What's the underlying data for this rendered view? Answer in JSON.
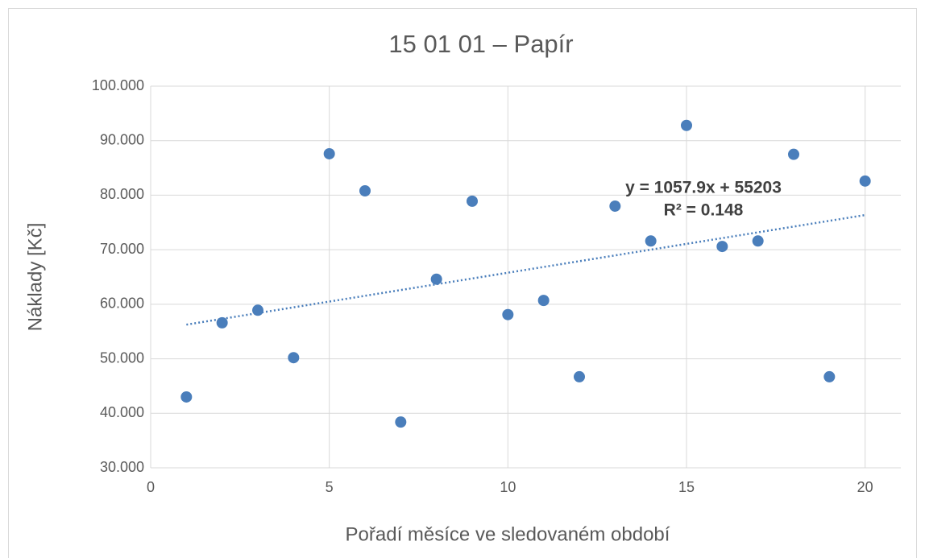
{
  "chart_data": {
    "type": "scatter",
    "title": "15 01 01 – Papír",
    "x_label": "Pořadí měsíce ve sledovaném období",
    "y_label": "Náklady [Kč]",
    "x": [
      1,
      2,
      3,
      4,
      5,
      6,
      7,
      8,
      9,
      10,
      11,
      12,
      13,
      14,
      15,
      16,
      17,
      18,
      19,
      20
    ],
    "series": [
      {
        "name": "Náklady",
        "color": "#4a7ebb",
        "values": [
          43000,
          56600,
          58900,
          50200,
          87600,
          80800,
          38400,
          64600,
          78900,
          58100,
          60700,
          46700,
          78000,
          71600,
          92800,
          70600,
          71600,
          87500,
          46700,
          82600
        ]
      }
    ],
    "xlim": [
      0,
      21
    ],
    "xticks": [
      0,
      5,
      10,
      15,
      20
    ],
    "ylim": [
      30000,
      100000
    ],
    "yticks": [
      {
        "value": 30000,
        "label": "30.000"
      },
      {
        "value": 40000,
        "label": "40.000"
      },
      {
        "value": 50000,
        "label": "50.000"
      },
      {
        "value": 60000,
        "label": "60.000"
      },
      {
        "value": 70000,
        "label": "70.000"
      },
      {
        "value": 80000,
        "label": "80.000"
      },
      {
        "value": 90000,
        "label": "90.000"
      },
      {
        "value": 100000,
        "label": "100.000"
      }
    ],
    "grid": true,
    "trendline": {
      "slope": 1057.9,
      "intercept": 55203,
      "equation": "y = 1057.9x + 55203",
      "r2_label": "R² = 0.148"
    }
  }
}
